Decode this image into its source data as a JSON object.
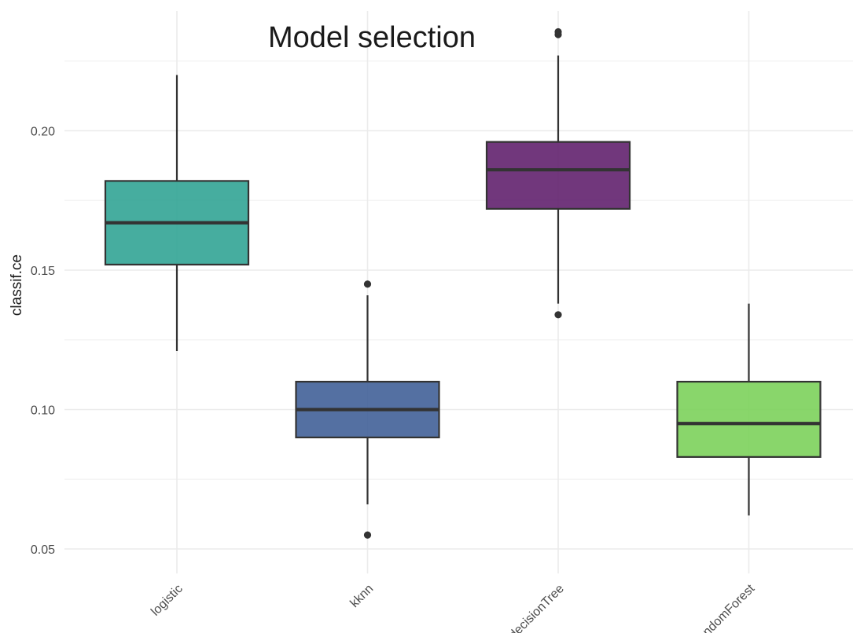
{
  "chart_data": {
    "type": "boxplot",
    "title": "Model selection",
    "xlabel": "",
    "ylabel": "classif.ce",
    "ylim": [
      0.044,
      0.238
    ],
    "yticks": [
      "0.05",
      "0.10",
      "0.15",
      "0.20"
    ],
    "grid": true,
    "legend": "none",
    "categories": [
      "logistic",
      "kknn",
      "decisionTree",
      "randomForest"
    ],
    "boxes": [
      {
        "name": "logistic",
        "color": "#2BA191",
        "whisker_low": 0.121,
        "q1": 0.152,
        "median": 0.167,
        "q3": 0.182,
        "whisker_high": 0.22,
        "outliers": []
      },
      {
        "name": "kknn",
        "color": "#3B5B94",
        "whisker_low": 0.066,
        "q1": 0.09,
        "median": 0.1,
        "q3": 0.11,
        "whisker_high": 0.141,
        "outliers": [
          0.145,
          0.055
        ]
      },
      {
        "name": "decisionTree",
        "color": "#5C1968",
        "whisker_low": 0.138,
        "q1": 0.172,
        "median": 0.186,
        "q3": 0.196,
        "whisker_high": 0.227,
        "outliers": [
          0.134,
          0.2345,
          0.2355
        ]
      },
      {
        "name": "randomForest",
        "color": "#77D055",
        "whisker_low": 0.062,
        "q1": 0.083,
        "median": 0.095,
        "q3": 0.11,
        "whisker_high": 0.138,
        "outliers": []
      }
    ]
  }
}
